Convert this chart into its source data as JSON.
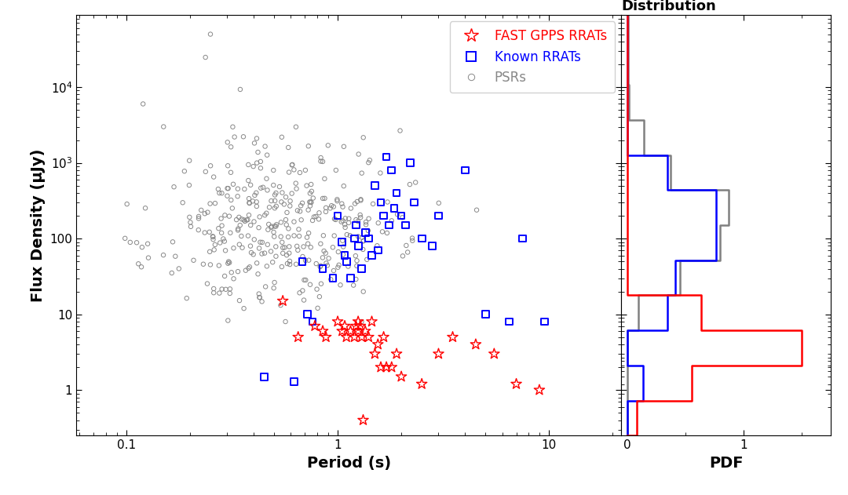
{
  "title_right": "Flux Density\nDistribution",
  "xlabel": "Period (s)",
  "ylabel": "Flux Density (μJy)",
  "xlabel_right": "PDF",
  "legend_labels": [
    "FAST GPPS RRATs",
    "Known RRATs",
    "PSRs"
  ],
  "psr_color": "#888888",
  "known_rrat_color": "blue",
  "fast_rrat_color": "red",
  "background_color": "white",
  "fontsize_label": 14,
  "fontsize_title": 13,
  "fontsize_legend": 12,
  "fontsize_tick": 11
}
